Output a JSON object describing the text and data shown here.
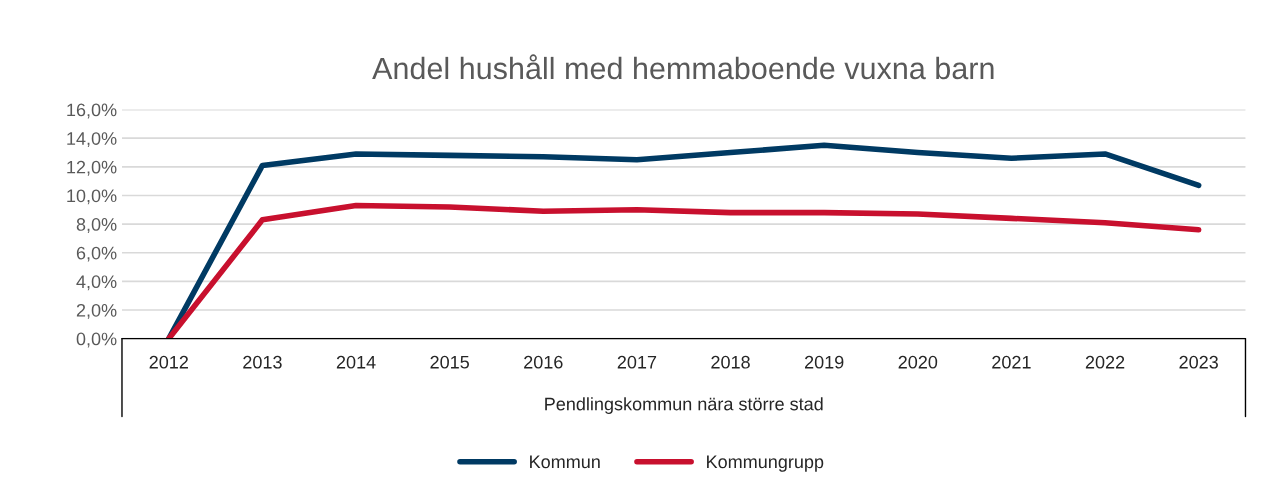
{
  "chart_data": {
    "type": "line",
    "title": "Andel hushåll med hemmaboende vuxna barn",
    "xlabel": "Pendlingskommun nära större stad",
    "categories": [
      "2012",
      "2013",
      "2014",
      "2015",
      "2016",
      "2017",
      "2018",
      "2019",
      "2020",
      "2021",
      "2022",
      "2023"
    ],
    "series": [
      {
        "name": "Kommun",
        "color": "#003a63",
        "values": [
          0,
          12.1,
          12.9,
          12.8,
          12.7,
          12.5,
          13.0,
          13.5,
          13.0,
          12.6,
          12.9,
          10.7
        ]
      },
      {
        "name": "Kommungrupp",
        "color": "#c8102e",
        "values": [
          0,
          8.3,
          9.3,
          9.2,
          8.9,
          9.0,
          8.8,
          8.8,
          8.7,
          8.4,
          8.1,
          7.6
        ]
      }
    ],
    "ylim": [
      0,
      16
    ],
    "yticks": [
      {
        "value": 0,
        "label": "0,0%"
      },
      {
        "value": 2,
        "label": "2,0%"
      },
      {
        "value": 4,
        "label": "4,0%"
      },
      {
        "value": 6,
        "label": "6,0%"
      },
      {
        "value": 8,
        "label": "8,0%"
      },
      {
        "value": 10,
        "label": "10,0%"
      },
      {
        "value": 12,
        "label": "12,0%"
      },
      {
        "value": 14,
        "label": "14,0%"
      },
      {
        "value": 16,
        "label": "16,0%"
      }
    ],
    "grid": "y",
    "legend": "bottom",
    "marker": "none",
    "line_style": "solid"
  }
}
